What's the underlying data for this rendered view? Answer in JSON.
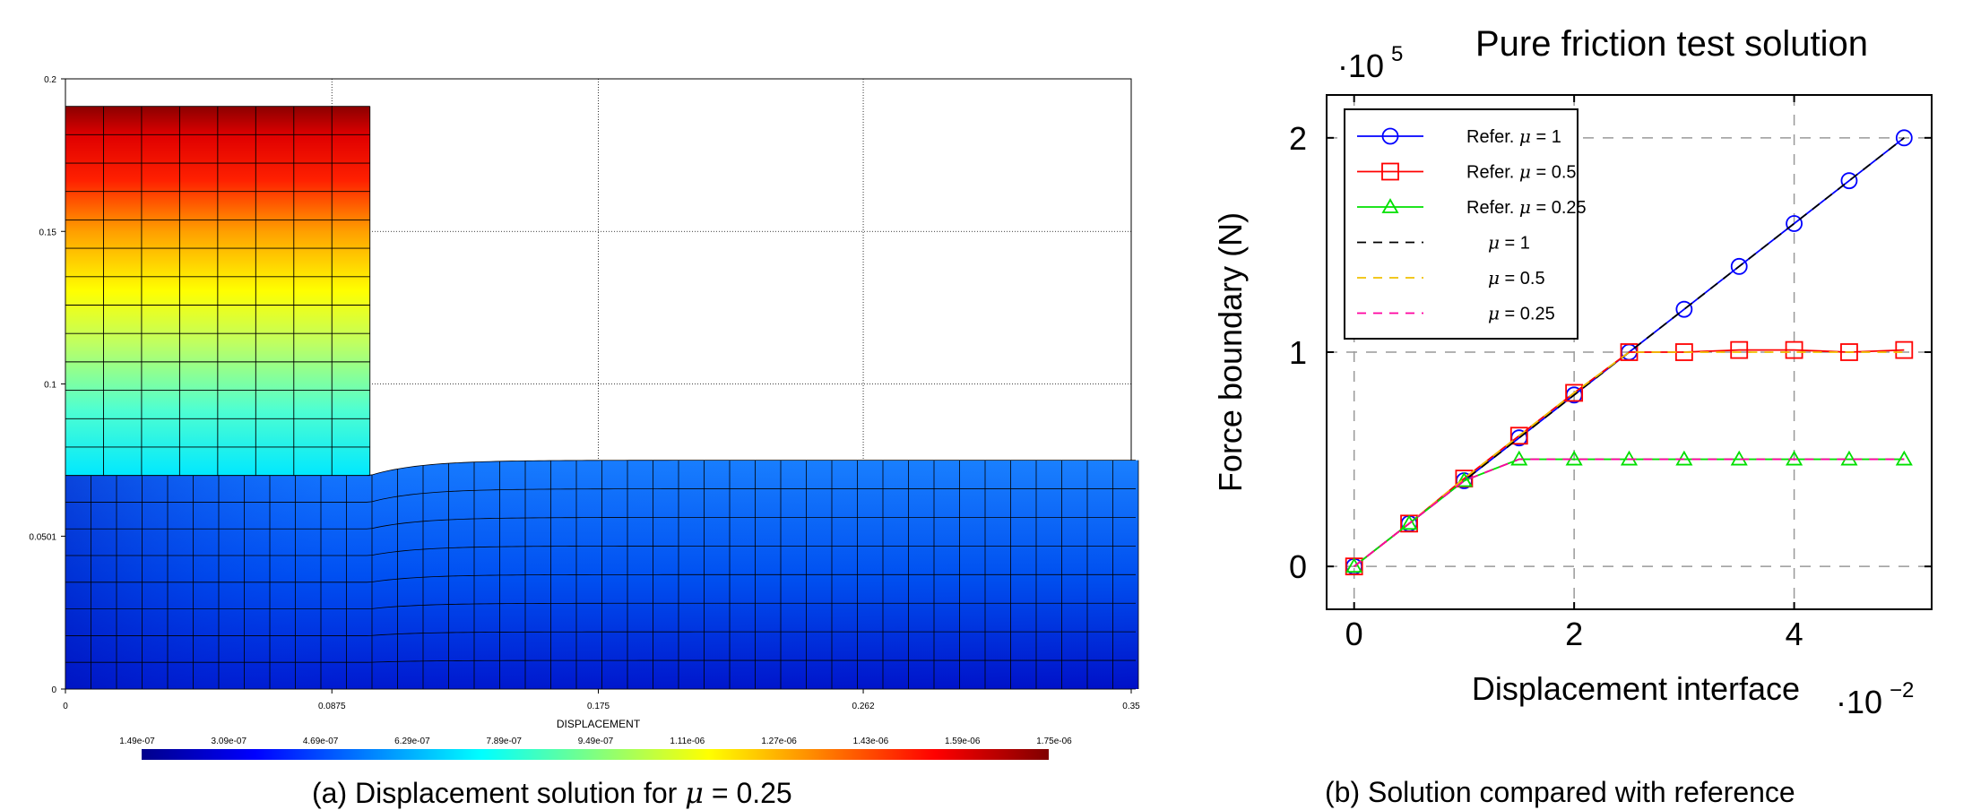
{
  "captions": {
    "left_prefix": "(a) Displacement solution for",
    "left_mu": "μ",
    "left_suffix": "= 0.25",
    "right": "(b) Solution compared with reference"
  },
  "chart_data": [
    {
      "type": "heatmap",
      "title": "",
      "xlabel": "DISPLACEMENT",
      "ylabel": "",
      "xlim": [
        0,
        0.35
      ],
      "ylim": [
        0,
        0.2
      ],
      "x_ticks": [
        0,
        0.0875,
        0.175,
        0.262,
        0.35
      ],
      "x_tick_labels": [
        "0",
        "0.0875",
        "0.175",
        "0.262",
        "0.35"
      ],
      "y_ticks": [
        0,
        0.0501,
        0.1,
        0.15,
        0.2
      ],
      "y_tick_labels": [
        "0",
        "0.0501",
        "0.1",
        "0.15",
        "0.2"
      ],
      "grid": true,
      "colorbar": {
        "min": 1.49e-07,
        "max": 1.75e-06,
        "tick_labels": [
          "1.49e-07",
          "3.09e-07",
          "4.69e-07",
          "6.29e-07",
          "7.89e-07",
          "9.49e-07",
          "1.11e-06",
          "1.27e-06",
          "1.43e-06",
          "1.59e-06",
          "1.75e-06"
        ],
        "colors": [
          "#00008b",
          "#0000ff",
          "#0080ff",
          "#00ffff",
          "#80ff80",
          "#ffff00",
          "#ff8000",
          "#ff0000",
          "#800000"
        ]
      },
      "block": {
        "x_range": [
          0,
          0.1
        ],
        "y_range": [
          0.07,
          0.191
        ],
        "cols": 8,
        "rows": 13
      },
      "foundation": {
        "x_range": [
          0,
          0.35
        ],
        "y_range": [
          0,
          0.075
        ],
        "cols": 42,
        "rows": 8
      }
    },
    {
      "type": "line",
      "title": "Pure friction test solution",
      "xlabel": "Displacement interface",
      "ylabel": "Force boundary (N)",
      "x_multiplier": "·10",
      "x_exponent": "−2",
      "y_multiplier": "·10",
      "y_exponent": "5",
      "xlim": [
        -0.25,
        5.25
      ],
      "ylim": [
        -0.2,
        2.2
      ],
      "x_ticks": [
        0,
        2,
        4
      ],
      "x_tick_labels": [
        "0",
        "2",
        "4"
      ],
      "y_ticks": [
        0,
        1,
        2
      ],
      "y_tick_labels": [
        "0",
        "1",
        "2"
      ],
      "grid": true,
      "legend_position": "top-left",
      "x": [
        0,
        0.5,
        1,
        1.5,
        2,
        2.5,
        3,
        3.5,
        4,
        4.5,
        5
      ],
      "series": [
        {
          "name": "Refer. μ = 1",
          "label_prefix": "Refer.",
          "label_value": "= 1",
          "color": "#0000ff",
          "marker": "circle",
          "dash": false,
          "values": [
            0,
            0.2,
            0.4,
            0.6,
            0.8,
            1.0,
            1.2,
            1.4,
            1.6,
            1.8,
            2.0
          ]
        },
        {
          "name": "Refer. μ = 0.5",
          "label_prefix": "Refer.",
          "label_value": "= 0.5",
          "color": "#ff0000",
          "marker": "square",
          "dash": false,
          "values": [
            0,
            0.2,
            0.41,
            0.61,
            0.81,
            1.0,
            1.0,
            1.01,
            1.01,
            1.0,
            1.01
          ]
        },
        {
          "name": "Refer. μ = 0.25",
          "label_prefix": "Refer.",
          "label_value": "= 0.25",
          "color": "#00e000",
          "marker": "triangle",
          "dash": false,
          "values": [
            0,
            0.2,
            0.4,
            0.5,
            0.5,
            0.5,
            0.5,
            0.5,
            0.5,
            0.5,
            0.5
          ]
        },
        {
          "name": "μ = 1",
          "label_prefix": "",
          "label_value": "= 1",
          "color": "#000000",
          "marker": "none",
          "dash": true,
          "values": [
            0,
            0.2,
            0.4,
            0.6,
            0.8,
            1.0,
            1.2,
            1.4,
            1.6,
            1.8,
            2.0
          ]
        },
        {
          "name": "μ = 0.5",
          "label_prefix": "",
          "label_value": "= 0.5",
          "color": "#f0c000",
          "marker": "none",
          "dash": true,
          "values": [
            0,
            0.2,
            0.41,
            0.61,
            0.81,
            1.0,
            1.0,
            1.0,
            1.0,
            1.0,
            1.0
          ]
        },
        {
          "name": "μ = 0.25",
          "label_prefix": "",
          "label_value": "= 0.25",
          "color": "#ff00a0",
          "marker": "none",
          "dash": true,
          "values": [
            0,
            0.2,
            0.4,
            0.5,
            0.5,
            0.5,
            0.5,
            0.5,
            0.5,
            0.5,
            0.5
          ]
        }
      ]
    }
  ]
}
